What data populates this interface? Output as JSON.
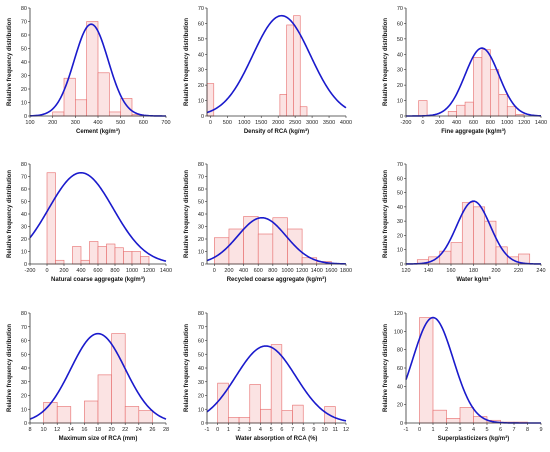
{
  "colors": {
    "bar_fill": "#fbe3e3",
    "bar_stroke": "#e76a6a",
    "curve": "#1a1acc"
  },
  "chart_data": [
    {
      "type": "bar",
      "title": "",
      "xlabel": "Cement",
      "xunit": "(kg/m",
      "xunit_sup": "3",
      "xunit_end": ")",
      "ylabel": "Relative frequency distribution",
      "xlim": [
        100,
        700
      ],
      "ylim": [
        0,
        80
      ],
      "xticks": [
        100,
        200,
        300,
        400,
        500,
        600,
        700
      ],
      "yticks": [
        0,
        10,
        20,
        30,
        40,
        50,
        60,
        70,
        80
      ],
      "bin_width": 50,
      "bars": [
        {
          "x": 225,
          "y": 3
        },
        {
          "x": 275,
          "y": 28
        },
        {
          "x": 325,
          "y": 12
        },
        {
          "x": 375,
          "y": 70
        },
        {
          "x": 425,
          "y": 32
        },
        {
          "x": 475,
          "y": 3
        },
        {
          "x": 525,
          "y": 13
        },
        {
          "x": 575,
          "y": 1
        }
      ],
      "normal_curve": {
        "mean": 370,
        "sd": 75,
        "peak": 68
      }
    },
    {
      "type": "bar",
      "title": "",
      "xlabel": "Density of RCA",
      "xunit": "(kg/m",
      "xunit_sup": "3",
      "xunit_end": ")",
      "ylabel": "Relative frequency distribution",
      "xlim": [
        -100,
        4000
      ],
      "ylim": [
        0,
        70
      ],
      "xticks": [
        0,
        500,
        1000,
        1500,
        2000,
        2500,
        3000,
        3500,
        4000
      ],
      "yticks": [
        0,
        10,
        20,
        30,
        40,
        50,
        60,
        70
      ],
      "bin_width": 200,
      "bars": [
        {
          "x": 0,
          "y": 21
        },
        {
          "x": 2150,
          "y": 14
        },
        {
          "x": 2350,
          "y": 59
        },
        {
          "x": 2550,
          "y": 65
        },
        {
          "x": 2750,
          "y": 6
        }
      ],
      "normal_curve": {
        "mean": 2100,
        "sd": 850,
        "peak": 65
      }
    },
    {
      "type": "bar",
      "title": "",
      "xlabel": "Fine aggregate",
      "xunit": "(kg/m",
      "xunit_sup": "3",
      "xunit_end": ")",
      "ylabel": "Relative frequency distribution",
      "xlim": [
        -200,
        1400
      ],
      "ylim": [
        0,
        70
      ],
      "xticks": [
        -200,
        0,
        200,
        400,
        600,
        800,
        1000,
        1200,
        1400
      ],
      "yticks": [
        0,
        10,
        20,
        30,
        40,
        50,
        60,
        70
      ],
      "bin_width": 100,
      "bars": [
        {
          "x": 0,
          "y": 10
        },
        {
          "x": 350,
          "y": 3
        },
        {
          "x": 450,
          "y": 7
        },
        {
          "x": 550,
          "y": 9
        },
        {
          "x": 650,
          "y": 38
        },
        {
          "x": 750,
          "y": 43
        },
        {
          "x": 850,
          "y": 30
        },
        {
          "x": 950,
          "y": 14
        },
        {
          "x": 1050,
          "y": 6
        },
        {
          "x": 1150,
          "y": 1
        }
      ],
      "normal_curve": {
        "mean": 700,
        "sd": 200,
        "peak": 44
      }
    },
    {
      "type": "bar",
      "title": "",
      "xlabel": "Natural coarse aggregate",
      "xunit": "(kg/m",
      "xunit_sup": "3",
      "xunit_end": ")",
      "ylabel": "Relative frequency distribution",
      "xlim": [
        -200,
        1400
      ],
      "ylim": [
        0,
        80
      ],
      "xticks": [
        -200,
        0,
        200,
        400,
        600,
        800,
        1000,
        1200,
        1400
      ],
      "yticks": [
        0,
        10,
        20,
        30,
        40,
        50,
        60,
        70,
        80
      ],
      "bin_width": 100,
      "bars": [
        {
          "x": 50,
          "y": 73
        },
        {
          "x": 150,
          "y": 3
        },
        {
          "x": 350,
          "y": 14
        },
        {
          "x": 450,
          "y": 3
        },
        {
          "x": 550,
          "y": 18
        },
        {
          "x": 650,
          "y": 14
        },
        {
          "x": 750,
          "y": 16
        },
        {
          "x": 850,
          "y": 13
        },
        {
          "x": 950,
          "y": 10
        },
        {
          "x": 1050,
          "y": 10
        },
        {
          "x": 1150,
          "y": 6
        }
      ],
      "normal_curve": {
        "mean": 400,
        "sd": 380,
        "peak": 73
      }
    },
    {
      "type": "bar",
      "title": "",
      "xlabel": "Recycled coarse aggregate",
      "xunit": "(kg/m",
      "xunit_sup": "3",
      "xunit_end": ")",
      "ylabel": "Relative frequency distribution",
      "xlim": [
        -100,
        1800
      ],
      "ylim": [
        0,
        80
      ],
      "xticks": [
        0,
        200,
        400,
        600,
        800,
        1000,
        1200,
        1400,
        1600,
        1800
      ],
      "yticks": [
        0,
        10,
        20,
        30,
        40,
        50,
        60,
        70,
        80
      ],
      "bin_width": 200,
      "bars": [
        {
          "x": 100,
          "y": 21
        },
        {
          "x": 300,
          "y": 28
        },
        {
          "x": 500,
          "y": 38
        },
        {
          "x": 700,
          "y": 24
        },
        {
          "x": 900,
          "y": 37
        },
        {
          "x": 1100,
          "y": 28
        },
        {
          "x": 1300,
          "y": 5
        },
        {
          "x": 1500,
          "y": 2
        }
      ],
      "normal_curve": {
        "mean": 650,
        "sd": 330,
        "peak": 37
      }
    },
    {
      "type": "bar",
      "title": "",
      "xlabel": "Water kg/m",
      "xunit": "",
      "xunit_sup": "3",
      "xunit_end": "",
      "ylabel": "Relative frequency distribution",
      "xlim": [
        120,
        240
      ],
      "ylim": [
        0,
        70
      ],
      "xticks": [
        120,
        140,
        160,
        180,
        200,
        220,
        240
      ],
      "yticks": [
        0,
        10,
        20,
        30,
        40,
        50,
        60,
        70
      ],
      "bin_width": 10,
      "bars": [
        {
          "x": 135,
          "y": 3
        },
        {
          "x": 145,
          "y": 5
        },
        {
          "x": 155,
          "y": 9
        },
        {
          "x": 165,
          "y": 15
        },
        {
          "x": 175,
          "y": 43
        },
        {
          "x": 185,
          "y": 40
        },
        {
          "x": 195,
          "y": 30
        },
        {
          "x": 205,
          "y": 12
        },
        {
          "x": 215,
          "y": 5
        },
        {
          "x": 225,
          "y": 7
        }
      ],
      "normal_curve": {
        "mean": 180,
        "sd": 15,
        "peak": 44
      }
    },
    {
      "type": "bar",
      "title": "",
      "xlabel": "Maximum size of RCA",
      "xunit": "(mm)",
      "xunit_sup": "",
      "xunit_end": "",
      "ylabel": "Relative frequency distribution",
      "xlim": [
        8,
        28
      ],
      "ylim": [
        0,
        80
      ],
      "xticks": [
        8,
        10,
        12,
        14,
        16,
        18,
        20,
        22,
        24,
        26,
        28
      ],
      "yticks": [
        0,
        10,
        20,
        30,
        40,
        50,
        60,
        70,
        80
      ],
      "bin_width": 2,
      "bars": [
        {
          "x": 11,
          "y": 15
        },
        {
          "x": 13,
          "y": 12
        },
        {
          "x": 17,
          "y": 16
        },
        {
          "x": 19,
          "y": 35
        },
        {
          "x": 21,
          "y": 65
        },
        {
          "x": 23,
          "y": 12
        },
        {
          "x": 25,
          "y": 9
        }
      ],
      "normal_curve": {
        "mean": 18,
        "sd": 4,
        "peak": 65
      }
    },
    {
      "type": "bar",
      "title": "",
      "xlabel": "Water absorption of RCA",
      "xunit": "(%)",
      "xunit_sup": "",
      "xunit_end": "",
      "ylabel": "Relative frequency distribution",
      "xlim": [
        -1,
        12
      ],
      "ylim": [
        0,
        80
      ],
      "xticks": [
        -1,
        0,
        1,
        2,
        3,
        4,
        5,
        6,
        7,
        8,
        9,
        10,
        11,
        12
      ],
      "yticks": [
        0,
        10,
        20,
        30,
        40,
        50,
        60,
        70,
        80
      ],
      "bin_width": 1,
      "bars": [
        {
          "x": 0.5,
          "y": 29
        },
        {
          "x": 1.5,
          "y": 4
        },
        {
          "x": 2.5,
          "y": 4
        },
        {
          "x": 3.5,
          "y": 28
        },
        {
          "x": 4.5,
          "y": 10
        },
        {
          "x": 5.5,
          "y": 57
        },
        {
          "x": 6.5,
          "y": 9
        },
        {
          "x": 7.5,
          "y": 13
        },
        {
          "x": 10.5,
          "y": 12
        }
      ],
      "normal_curve": {
        "mean": 4.5,
        "sd": 2.8,
        "peak": 56
      }
    },
    {
      "type": "bar",
      "title": "",
      "xlabel": "Superplasticizers",
      "xunit": "(kg/m",
      "xunit_sup": "3",
      "xunit_end": ")",
      "ylabel": "Relative frequency distribution",
      "xlim": [
        -1,
        9
      ],
      "ylim": [
        0,
        120
      ],
      "xticks": [
        -1,
        0,
        1,
        2,
        3,
        4,
        5,
        6,
        7,
        8,
        9
      ],
      "yticks": [
        0,
        20,
        40,
        60,
        80,
        100,
        120
      ],
      "bin_width": 1,
      "bars": [
        {
          "x": 0.5,
          "y": 115
        },
        {
          "x": 1.5,
          "y": 14
        },
        {
          "x": 2.5,
          "y": 5
        },
        {
          "x": 3.5,
          "y": 17
        },
        {
          "x": 4.5,
          "y": 7
        },
        {
          "x": 5.5,
          "y": 3
        },
        {
          "x": 6.5,
          "y": 1
        },
        {
          "x": 7.5,
          "y": 1
        }
      ],
      "normal_curve": {
        "mean": 1.0,
        "sd": 1.5,
        "peak": 115
      }
    }
  ]
}
